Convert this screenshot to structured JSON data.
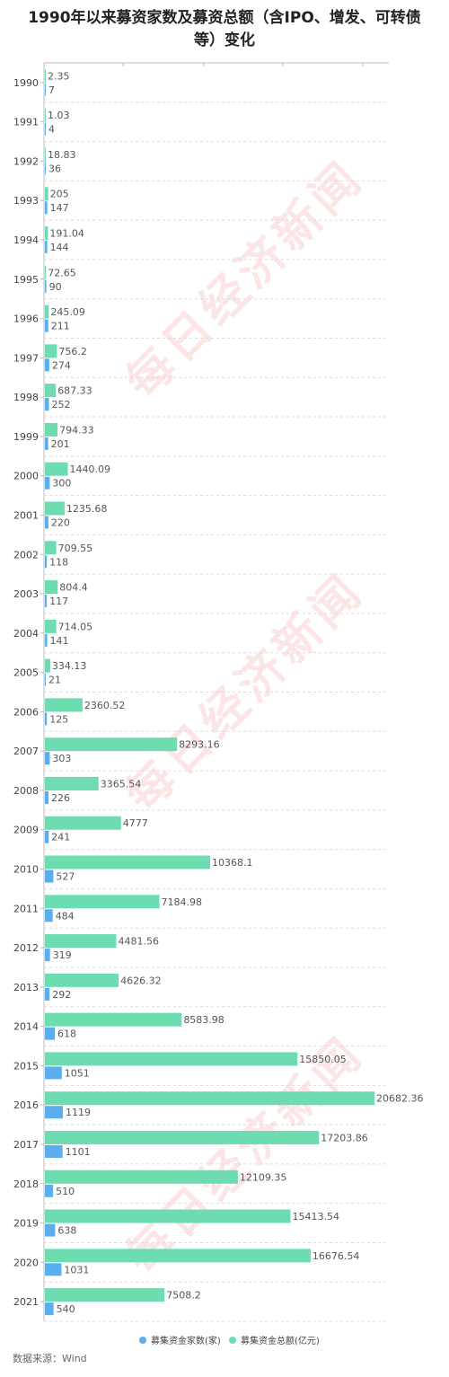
{
  "title": {
    "line1": "1990年以来募资家数及募资总额（含IPO、增发、可转债",
    "line2": "等）变化"
  },
  "watermark": "每日经济新闻",
  "colors": {
    "amount": "#6ddcb0",
    "count": "#5aaeed",
    "grid": "#dcdcdc",
    "axis": "#bbbbbb"
  },
  "legend": {
    "count_label": "募集资金家数(家)",
    "amount_label": "募集资金总额(亿元)"
  },
  "source": "数据来源：Wind",
  "chart_data": {
    "type": "bar",
    "orientation": "horizontal",
    "categories": [
      "1990",
      "1991",
      "1992",
      "1993",
      "1994",
      "1995",
      "1996",
      "1997",
      "1998",
      "1999",
      "2000",
      "2001",
      "2002",
      "2003",
      "2004",
      "2005",
      "2006",
      "2007",
      "2008",
      "2009",
      "2010",
      "2011",
      "2012",
      "2013",
      "2014",
      "2015",
      "2016",
      "2017",
      "2018",
      "2019",
      "2020",
      "2021"
    ],
    "series": [
      {
        "name": "募集资金总额(亿元)",
        "key": "amount",
        "values": [
          "2.35",
          "1.03",
          "18.83",
          "205",
          "191.04",
          "72.65",
          "245.09",
          "756.2",
          "687.33",
          "794.33",
          "1440.09",
          "1235.68",
          "709.55",
          "804.4",
          "714.05",
          "334.13",
          "2360.52",
          "8293.16",
          "3365.54",
          "4777",
          "10368.1",
          "7184.98",
          "4481.56",
          "4626.32",
          "8583.98",
          "15850.05",
          "20682.36",
          "17203.86",
          "12109.35",
          "15413.54",
          "16676.54",
          "7508.2"
        ]
      },
      {
        "name": "募集资金家数(家)",
        "key": "count",
        "values": [
          "7",
          "4",
          "36",
          "147",
          "144",
          "90",
          "211",
          "274",
          "252",
          "201",
          "300",
          "220",
          "118",
          "117",
          "141",
          "21",
          "125",
          "303",
          "226",
          "241",
          "527",
          "484",
          "319",
          "292",
          "618",
          "1051",
          "1119",
          "1101",
          "510",
          "638",
          "1031",
          "540"
        ]
      }
    ],
    "xlim": [
      0,
      20682.36
    ],
    "grid": true,
    "legend_position": "bottom"
  }
}
